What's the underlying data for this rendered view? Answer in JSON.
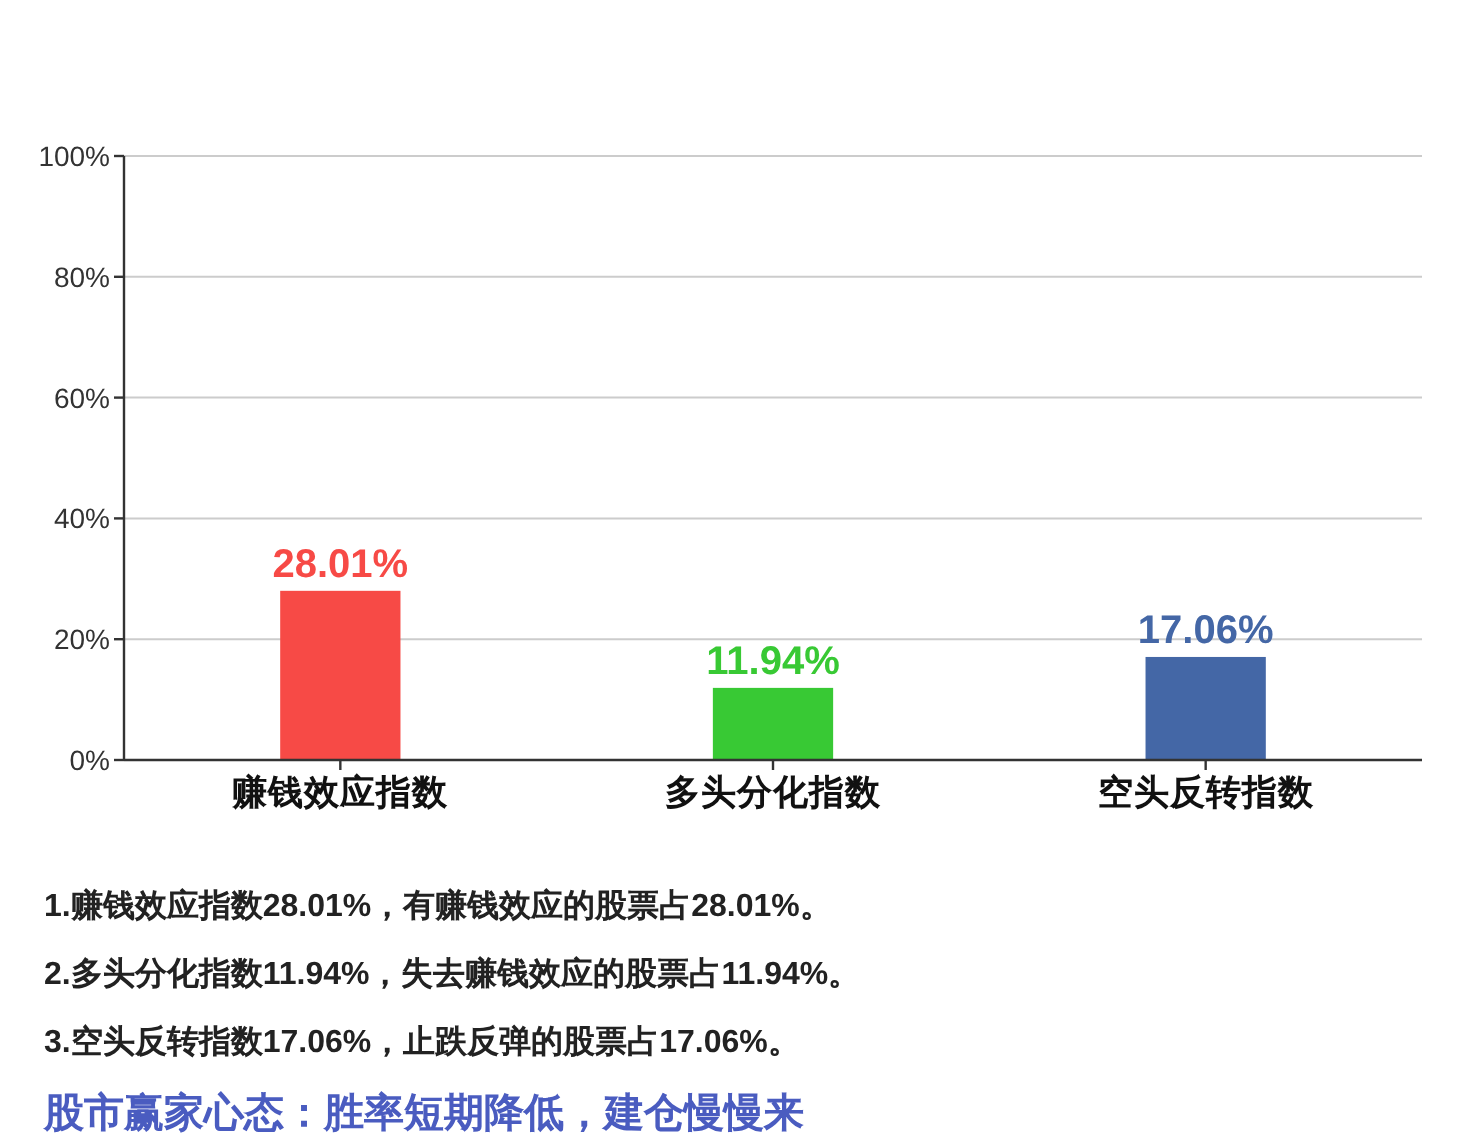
{
  "chart_data": {
    "type": "bar",
    "categories": [
      "赚钱效应指数",
      "多头分化指数",
      "空头反转指数"
    ],
    "values": [
      28.01,
      11.94,
      17.06
    ],
    "colors": [
      "#f74a46",
      "#38c934",
      "#4467a6"
    ],
    "value_labels": [
      "28.01%",
      "11.94%",
      "17.06%"
    ],
    "ylim": [
      0,
      100
    ],
    "yticks": [
      {
        "value": 0,
        "label": "0%"
      },
      {
        "value": 20,
        "label": "20%"
      },
      {
        "value": 40,
        "label": "40%"
      },
      {
        "value": 60,
        "label": "60%"
      },
      {
        "value": 80,
        "label": "80%"
      },
      {
        "value": 100,
        "label": "100%"
      }
    ],
    "grid": "y",
    "annotations": [
      "1.赚钱效应指数28.01%，有赚钱效应的股票占28.01%。",
      "2.多头分化指数11.94%，失去赚钱效应的股票占11.94%。",
      "3.空头反转指数17.06%，止跌反弹的股票占17.06%。",
      "股市赢家心态：胜率短期降低，建仓慢慢来"
    ]
  }
}
